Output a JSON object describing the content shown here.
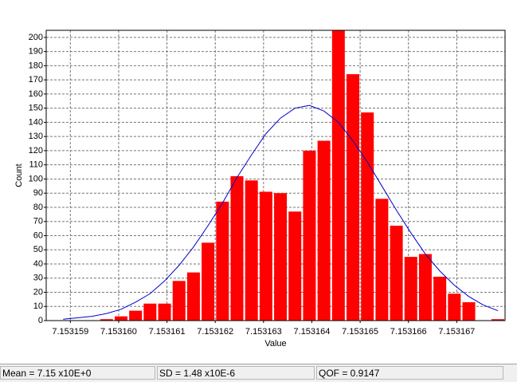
{
  "chart_data": {
    "type": "histogram",
    "xlabel": "Value",
    "ylabel": "Count",
    "bins": [
      7.1531587,
      7.153159,
      7.1531593,
      7.1531596,
      7.1531599,
      7.1531602,
      7.1531605,
      7.1531608,
      7.1531611,
      7.1531614,
      7.1531617,
      7.153162,
      7.1531623,
      7.1531626,
      7.1531629,
      7.1531632,
      7.1531635,
      7.1531638,
      7.1531641,
      7.1531644,
      7.1531647,
      7.153165,
      7.1531653,
      7.1531656,
      7.1531659,
      7.1531662,
      7.1531665,
      7.1531668,
      7.1531671,
      7.1531674,
      7.1531677,
      7.153168
    ],
    "values": [
      0,
      0,
      0,
      1,
      3,
      7,
      12,
      12,
      28,
      34,
      55,
      84,
      102,
      99,
      91,
      90,
      77,
      120,
      127,
      205,
      174,
      147,
      86,
      67,
      45,
      47,
      31,
      19,
      13,
      0,
      1
    ],
    "color": "#ff0000",
    "curve": {
      "color": "#0000cc",
      "x": [
        7.15315885,
        7.15315915,
        7.15315945,
        7.15315975,
        7.15316005,
        7.15316035,
        7.15316065,
        7.15316095,
        7.15316125,
        7.15316155,
        7.15316185,
        7.15316215,
        7.15316245,
        7.15316275,
        7.15316305,
        7.15316335,
        7.15316365,
        7.15316395,
        7.15316425,
        7.15316455,
        7.15316485,
        7.15316515,
        7.15316545,
        7.15316575,
        7.15316605,
        7.15316635,
        7.15316665,
        7.15316695,
        7.15316725,
        7.15316755,
        7.15316785
      ],
      "y": [
        1,
        2,
        3,
        5,
        8,
        13,
        19,
        28,
        39,
        52,
        67,
        83,
        101,
        117,
        132,
        143,
        150,
        152,
        148,
        140,
        127,
        112,
        95,
        78,
        62,
        47,
        35,
        25,
        17,
        11,
        7
      ]
    },
    "xlim": [
      7.1531585,
      7.153168
    ],
    "xticks": [
      7.153159,
      {
        "value": 7.15316,
        "label": "7.153160"
      },
      7.153161,
      7.153162,
      7.153163,
      7.153164,
      7.153165,
      7.153166,
      7.153167
    ],
    "ylim": [
      0,
      205
    ],
    "yticks": [
      0,
      10,
      20,
      30,
      40,
      50,
      60,
      70,
      80,
      90,
      100,
      110,
      120,
      130,
      140,
      150,
      160,
      170,
      180,
      190,
      200
    ],
    "grid": true
  },
  "status_bar": [
    "Mean = 7.15 x10E+0",
    "SD = 1.48 x10E-6",
    "QOF = 0.9147"
  ]
}
